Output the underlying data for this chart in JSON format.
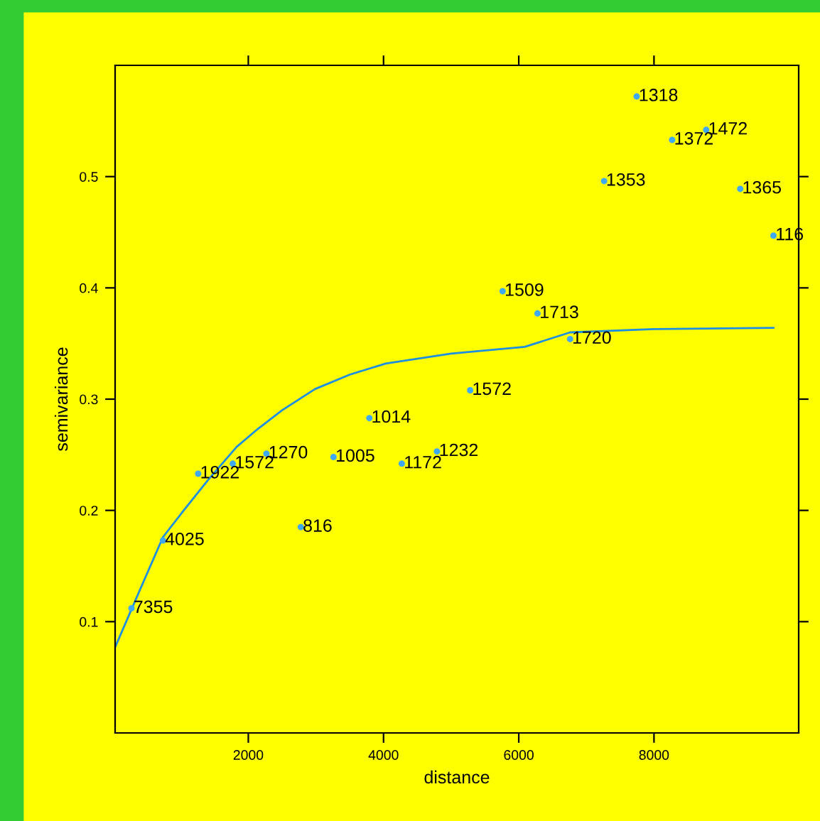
{
  "chart_data": {
    "type": "scatter",
    "xlabel": "distance",
    "ylabel": "semivariance",
    "xlim": [
      30,
      10140
    ],
    "ylim": [
      0,
      0.6
    ],
    "xticks": [
      2000,
      4000,
      6000,
      8000
    ],
    "yticks": [
      0.1,
      0.2,
      0.3,
      0.4,
      0.5
    ],
    "grid": false,
    "series": [
      {
        "color": "#3fa9f5",
        "marker": "circle",
        "x": [
          272,
          738,
          1258,
          1770,
          2268,
          2776,
          3260,
          3790,
          4270,
          4790,
          5281,
          5761,
          6277,
          6759,
          7262,
          7744,
          8268,
          8772,
          9275,
          9767
        ],
        "values": [
          0.112,
          0.173,
          0.233,
          0.242,
          0.251,
          0.185,
          0.248,
          0.283,
          0.242,
          0.253,
          0.308,
          0.397,
          0.377,
          0.354,
          0.496,
          0.572,
          0.533,
          0.542,
          0.489,
          0.447
        ]
      },
      {
        "type": "line",
        "color": "#1e8fe0",
        "x": [
          30,
          386,
          738,
          1045,
          1400,
          1826,
          2136,
          2500,
          2985,
          3500,
          4033,
          5000,
          6088,
          6759,
          8000,
          9767
        ],
        "values": [
          0.077,
          0.127,
          0.176,
          0.2,
          0.227,
          0.257,
          0.273,
          0.29,
          0.309,
          0.322,
          0.332,
          0.341,
          0.347,
          0.36,
          0.363,
          0.364
        ]
      }
    ],
    "annotations": [
      {
        "text": "7355",
        "x": 272,
        "y": 0.112
      },
      {
        "text": "4025",
        "x": 738,
        "y": 0.173
      },
      {
        "text": "1922",
        "x": 1258,
        "y": 0.233
      },
      {
        "text": "1572",
        "x": 1770,
        "y": 0.242
      },
      {
        "text": "1270",
        "x": 2268,
        "y": 0.251
      },
      {
        "text": "816",
        "x": 2776,
        "y": 0.185
      },
      {
        "text": "1005",
        "x": 3260,
        "y": 0.248
      },
      {
        "text": "1014",
        "x": 3790,
        "y": 0.283
      },
      {
        "text": "1172",
        "x": 4270,
        "y": 0.242
      },
      {
        "text": "1232",
        "x": 4790,
        "y": 0.253
      },
      {
        "text": "1572",
        "x": 5281,
        "y": 0.308
      },
      {
        "text": "1509",
        "x": 5761,
        "y": 0.397
      },
      {
        "text": "1713",
        "x": 6277,
        "y": 0.377
      },
      {
        "text": "1720",
        "x": 6759,
        "y": 0.354
      },
      {
        "text": "1353",
        "x": 7262,
        "y": 0.496
      },
      {
        "text": "1318",
        "x": 7744,
        "y": 0.572
      },
      {
        "text": "1372",
        "x": 8268,
        "y": 0.533
      },
      {
        "text": "1472",
        "x": 8772,
        "y": 0.542
      },
      {
        "text": "1365",
        "x": 9275,
        "y": 0.489
      },
      {
        "text": "116",
        "x": 9767,
        "y": 0.447
      }
    ]
  }
}
